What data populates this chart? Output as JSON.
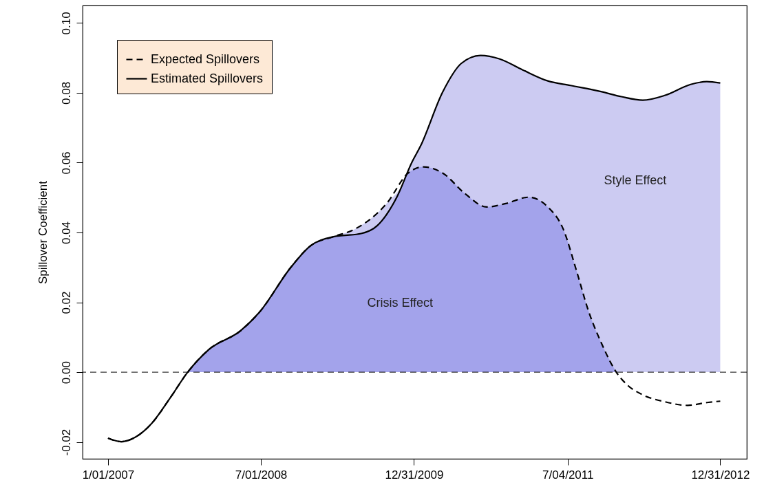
{
  "chart_data": {
    "type": "line",
    "ylabel": "Spillover Coefficient",
    "xlim": [
      "2006-10-02",
      "2013-04-05"
    ],
    "xticks": [
      {
        "value": "2007-01-01",
        "label": "1/01/2007"
      },
      {
        "value": "2008-07-01",
        "label": "7/01/2008"
      },
      {
        "value": "2009-12-31",
        "label": "12/31/2009"
      },
      {
        "value": "2011-07-04",
        "label": "7/04/2011"
      },
      {
        "value": "2012-12-31",
        "label": "12/31/2012"
      }
    ],
    "ylim": [
      -0.0248,
      0.105
    ],
    "yticks": [
      -0.02,
      {
        "value": 0,
        "label": "0.00"
      },
      0.02,
      0.04,
      0.06,
      0.08,
      {
        "value": 0.1,
        "label": "0.10"
      }
    ],
    "grid": false,
    "legend": "top left",
    "series": [
      {
        "type": "area",
        "color": "#cccbf2",
        "x": [
          "2007-10-13",
          "2007-12-28",
          "2008-04-20",
          "2008-06-24",
          "2008-10-18",
          "2008-12-24",
          "2009-03-18",
          "2009-06-03",
          "2009-09-24",
          "2009-12-10",
          "2009-12-24",
          "2010-01-23",
          "2010-04-13",
          "2010-06-18",
          "2010-08-26",
          "2010-11-03",
          "2011-01-23",
          "2011-04-24",
          "2011-07-14",
          "2011-11-03",
          "2012-01-12",
          "2012-03-29",
          "2012-06-17",
          "2012-09-16",
          "2012-11-13",
          "2012-12-31"
        ],
        "values": [
          0,
          0.0065,
          0.0119,
          0.017,
          0.0302,
          0.0361,
          0.0388,
          0.041,
          0.0483,
          0.057,
          0.0602,
          0.0647,
          0.0803,
          0.0884,
          0.0907,
          0.0897,
          0.0866,
          0.0834,
          0.0821,
          0.0803,
          0.0789,
          0.0779,
          0.0793,
          0.0824,
          0.0832,
          0.0828
        ]
      },
      {
        "type": "area",
        "color": "#a3a3eb",
        "x": [
          "2007-10-13",
          "2007-12-28",
          "2008-04-20",
          "2008-06-24",
          "2008-10-18",
          "2008-12-24",
          "2009-03-18",
          "2009-06-25",
          "2009-08-22",
          "2009-10-31",
          "2009-12-10",
          "2010-02-03",
          "2010-04-13",
          "2010-07-02",
          "2010-09-17",
          "2010-11-25",
          "2011-02-14",
          "2011-04-24",
          "2011-06-18",
          "2011-08-04",
          "2011-09-17",
          "2011-11-03",
          "2011-12-25"
        ],
        "values": [
          0,
          0.0065,
          0.0119,
          0.017,
          0.0302,
          0.0361,
          0.0388,
          0.0397,
          0.042,
          0.0502,
          0.057,
          0.0588,
          0.057,
          0.0511,
          0.0473,
          0.0483,
          0.0501,
          0.0473,
          0.041,
          0.0292,
          0.0174,
          0.0081,
          0
        ]
      },
      {
        "name": "Expected Spillovers",
        "color": "#000000",
        "line_style": "dashed",
        "x": [
          "2007-01-01",
          "2007-02-17",
          "2007-04-09",
          "2007-06-07",
          "2007-08-12",
          "2007-10-13",
          "2007-12-28",
          "2008-04-20",
          "2008-06-24",
          "2008-10-18",
          "2008-12-24",
          "2009-03-18",
          "2009-06-03",
          "2009-09-24",
          "2009-12-10",
          "2010-02-03",
          "2010-04-13",
          "2010-07-02",
          "2010-09-17",
          "2010-11-25",
          "2011-02-14",
          "2011-04-24",
          "2011-06-18",
          "2011-08-04",
          "2011-09-17",
          "2011-11-03",
          "2011-12-25",
          "2012-02-03",
          "2012-03-29",
          "2012-06-17",
          "2012-09-05",
          "2012-11-13",
          "2012-12-31"
        ],
        "values": [
          -0.0189,
          -0.0199,
          -0.0186,
          -0.0146,
          -0.0073,
          0,
          0.0065,
          0.0119,
          0.017,
          0.0302,
          0.0361,
          0.0388,
          0.041,
          0.0483,
          0.057,
          0.0588,
          0.057,
          0.0511,
          0.0473,
          0.0483,
          0.0501,
          0.0473,
          0.041,
          0.0292,
          0.0174,
          0.0081,
          0,
          -0.0037,
          -0.0065,
          -0.0085,
          -0.0095,
          -0.0087,
          -0.0083
        ]
      },
      {
        "name": "Estimated Spillovers",
        "color": "#000000",
        "line_style": "solid",
        "x": [
          "2007-01-01",
          "2007-02-17",
          "2007-04-09",
          "2007-06-07",
          "2007-08-12",
          "2007-10-13",
          "2007-12-28",
          "2008-04-20",
          "2008-06-24",
          "2008-10-18",
          "2008-12-24",
          "2009-03-18",
          "2009-06-25",
          "2009-08-22",
          "2009-10-31",
          "2009-12-24",
          "2010-01-23",
          "2010-04-13",
          "2010-06-18",
          "2010-08-26",
          "2010-11-03",
          "2011-01-23",
          "2011-04-24",
          "2011-07-14",
          "2011-11-03",
          "2012-01-12",
          "2012-03-29",
          "2012-06-17",
          "2012-09-16",
          "2012-11-13",
          "2012-12-31"
        ],
        "values": [
          -0.0189,
          -0.0199,
          -0.0186,
          -0.0146,
          -0.0073,
          0,
          0.0065,
          0.0119,
          0.017,
          0.0302,
          0.0361,
          0.0388,
          0.0397,
          0.042,
          0.0502,
          0.0602,
          0.0647,
          0.0803,
          0.0884,
          0.0907,
          0.0897,
          0.0866,
          0.0834,
          0.0821,
          0.0803,
          0.0789,
          0.0779,
          0.0793,
          0.0824,
          0.0832,
          0.0828
        ]
      }
    ],
    "ref_lines": [
      {
        "axis": "y",
        "value": 0,
        "line_style": "dashed",
        "color": "#000000"
      }
    ],
    "annotations": [
      "Crisis Effect",
      "Style Effect"
    ]
  }
}
